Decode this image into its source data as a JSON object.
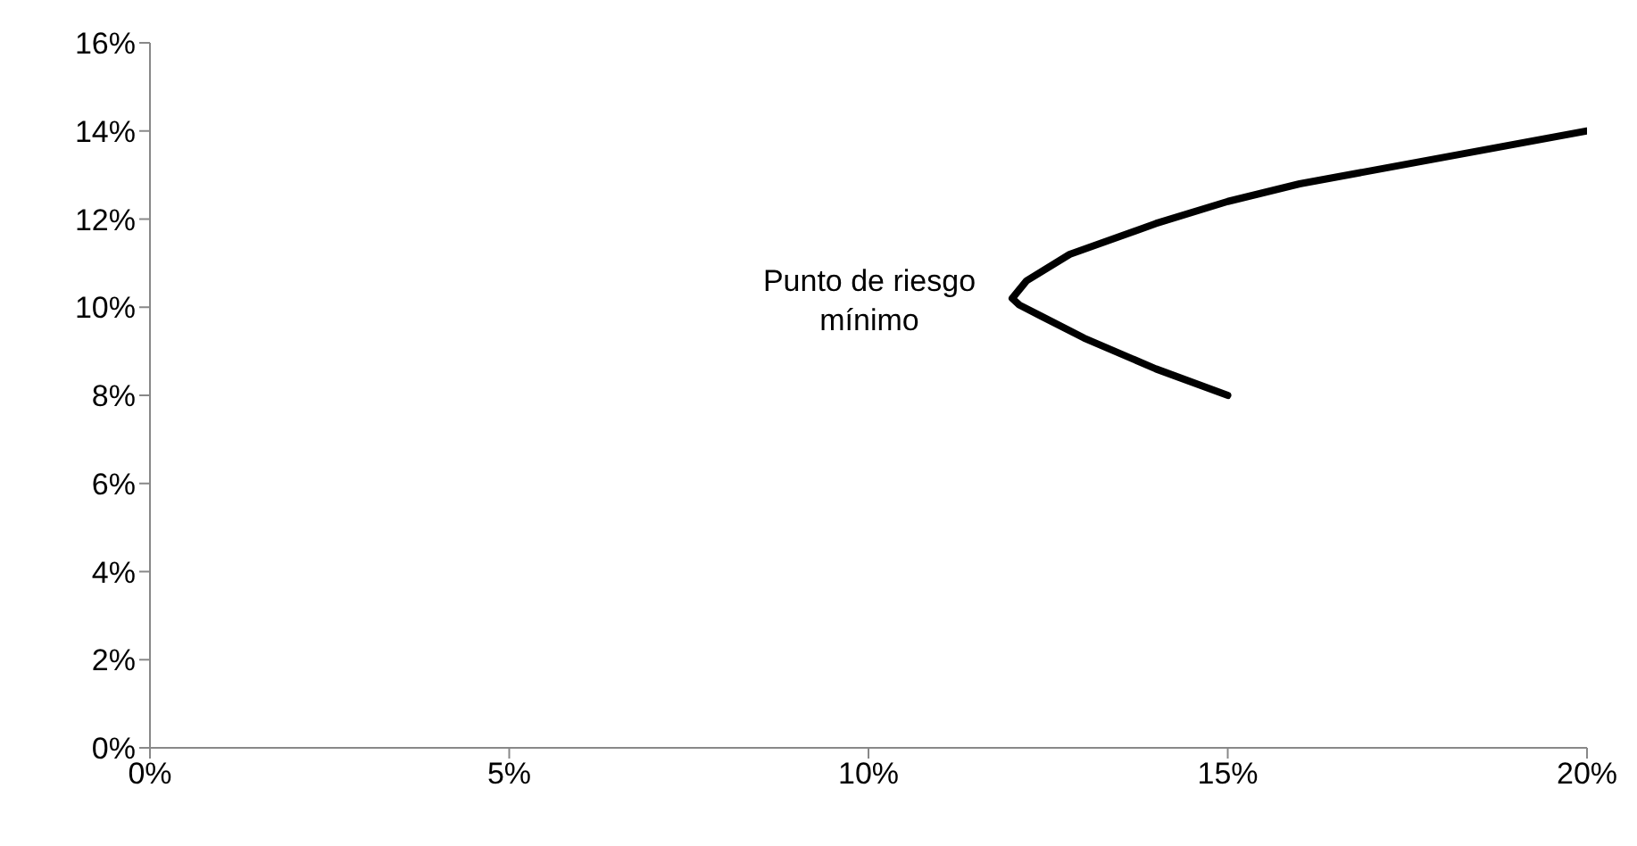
{
  "chart_data": {
    "type": "line",
    "series": [
      {
        "color": "#000000",
        "x": [
          15,
          14,
          13,
          12.4,
          12.1,
          12,
          12.2,
          12.8,
          14,
          15,
          16,
          18,
          20
        ],
        "values": [
          8,
          8.6,
          9.3,
          9.8,
          10.05,
          10.2,
          10.6,
          11.2,
          11.9,
          12.4,
          12.8,
          13.4,
          14
        ]
      }
    ],
    "xlim": [
      0,
      20
    ],
    "xticks": [
      {
        "value": 0,
        "label": "0%"
      },
      {
        "value": 5,
        "label": "5%"
      },
      {
        "value": 10,
        "label": "10%"
      },
      {
        "value": 15,
        "label": "15%"
      },
      {
        "value": 20,
        "label": "20%"
      }
    ],
    "ylim": [
      0,
      16
    ],
    "yticks": [
      {
        "value": 0,
        "label": "0%"
      },
      {
        "value": 2,
        "label": "2%"
      },
      {
        "value": 4,
        "label": "4%"
      },
      {
        "value": 6,
        "label": "6%"
      },
      {
        "value": 8,
        "label": "8%"
      },
      {
        "value": 10,
        "label": "10%"
      },
      {
        "value": 12,
        "label": "12%"
      },
      {
        "value": 14,
        "label": "14%"
      },
      {
        "value": 16,
        "label": "16%"
      }
    ],
    "annotations": [
      {
        "text": "Punto de riesgo\nmínimo",
        "x": 12,
        "y": 10.2
      }
    ],
    "grid": false,
    "legend": false,
    "marker": "none",
    "line_style": "solid"
  }
}
